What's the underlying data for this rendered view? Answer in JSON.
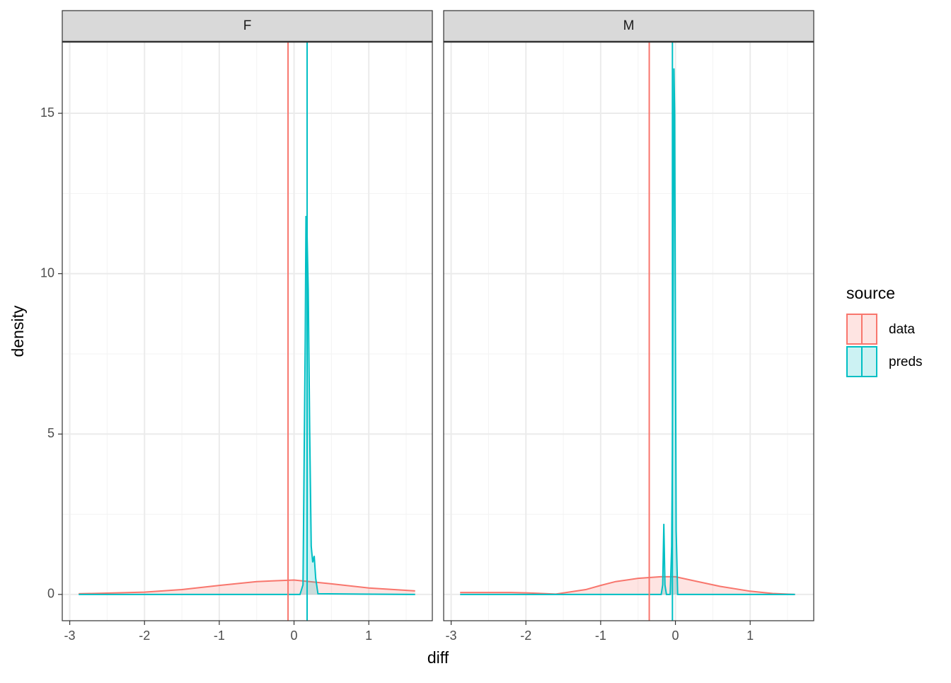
{
  "chart_data": {
    "type": "density",
    "xlabel": "diff",
    "ylabel": "density",
    "xlim": [
      -3.1,
      1.85
    ],
    "xticks": [
      -3,
      -2,
      -1,
      0,
      1
    ],
    "minor_xticks": [
      -2.5,
      -1.5,
      -0.5,
      0.5,
      1.5
    ],
    "ylim": [
      -0.82,
      17.23
    ],
    "yticks": [
      0,
      5,
      10,
      15
    ],
    "minor_yticks": [
      2.5,
      7.5,
      12.5
    ],
    "grid": true,
    "legend_title": "source",
    "legend": "right",
    "facets": [
      {
        "label": "F",
        "series": [
          {
            "name": "data",
            "color": "#F8766D",
            "vline": -0.08,
            "x": [
              -2.88,
              -2.5,
              -2,
              -1.5,
              -1,
              -0.5,
              0,
              0.5,
              1,
              1.62
            ],
            "values": [
              0.02,
              0.04,
              0.07,
              0.15,
              0.28,
              0.4,
              0.45,
              0.33,
              0.2,
              0.11
            ]
          },
          {
            "name": "preds",
            "color": "#00BFC4",
            "vline": 0.175,
            "x": [
              -2.88,
              0.08,
              0.12,
              0.15,
              0.16,
              0.17,
              0.19,
              0.21,
              0.23,
              0.25,
              0.27,
              0.29,
              0.32,
              1.62
            ],
            "values": [
              0,
              0,
              0.3,
              8,
              11.8,
              11.7,
              9.5,
              5,
              1.5,
              1.0,
              1.2,
              0.5,
              0.02,
              0
            ]
          }
        ]
      },
      {
        "label": "M",
        "series": [
          {
            "name": "data",
            "color": "#F8766D",
            "vline": -0.35,
            "x": [
              -2.88,
              -2.2,
              -2,
              -1.6,
              -1.2,
              -1,
              -0.8,
              -0.5,
              -0.2,
              0,
              0.3,
              0.6,
              1,
              1.3,
              1.6
            ],
            "values": [
              0.06,
              0.06,
              0.05,
              0.01,
              0.15,
              0.28,
              0.4,
              0.5,
              0.55,
              0.55,
              0.4,
              0.25,
              0.1,
              0.03,
              0.0
            ]
          },
          {
            "name": "preds",
            "color": "#00BFC4",
            "vline": -0.04,
            "x": [
              -2.88,
              -0.19,
              -0.17,
              -0.155,
              -0.14,
              -0.12,
              -0.07,
              -0.05,
              -0.04,
              -0.03,
              -0.02,
              -0.01,
              0.0,
              0.01,
              0.03,
              1.6
            ],
            "values": [
              0,
              0,
              0.3,
              2.2,
              0.3,
              0,
              0,
              1.5,
              4.5,
              10,
              16.4,
              15,
              8,
              2,
              0,
              0
            ]
          }
        ]
      }
    ]
  }
}
